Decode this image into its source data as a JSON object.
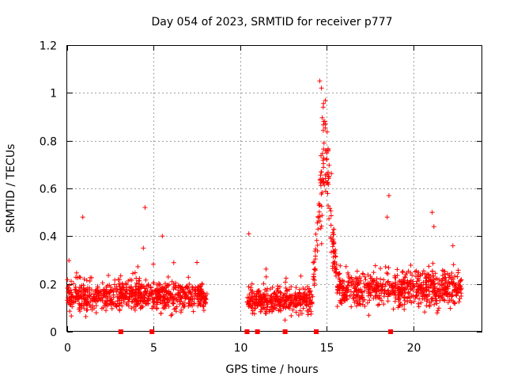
{
  "chart_data": {
    "type": "scatter",
    "title": "Day 054 of 2023, SRMTID for receiver p777",
    "xlabel": "GPS time / hours",
    "ylabel": "SRMTID / TECUs",
    "xlim": [
      0,
      24
    ],
    "ylim": [
      0,
      1.2
    ],
    "x_ticks": [
      0,
      5,
      10,
      15,
      20
    ],
    "x_tick_labels": [
      "0",
      "5",
      "10",
      "15",
      "20"
    ],
    "y_ticks": [
      0,
      0.2,
      0.4,
      0.6,
      0.8,
      1.0,
      1.2
    ],
    "y_tick_labels": [
      "0",
      "0.2",
      "0.4",
      "0.6",
      "0.8",
      "1",
      "1.2"
    ],
    "grid": true,
    "marker": "plus",
    "color": "#ff0000",
    "data_gaps_hours": [
      [
        8.1,
        10.4
      ]
    ],
    "segments": [
      {
        "x_range": [
          0.0,
          8.1
        ],
        "baseline": 0.15,
        "spread": 0.06
      },
      {
        "x_range": [
          10.4,
          14.2
        ],
        "baseline": 0.13,
        "spread": 0.05
      },
      {
        "x_range": [
          14.2,
          15.6
        ],
        "baseline": 0.45,
        "spread": 0.25
      },
      {
        "x_range": [
          15.6,
          22.8
        ],
        "baseline": 0.18,
        "spread": 0.07
      }
    ],
    "notable_points": [
      {
        "x": 0.9,
        "y": 0.48
      },
      {
        "x": 4.4,
        "y": 0.35
      },
      {
        "x": 4.5,
        "y": 0.52
      },
      {
        "x": 5.5,
        "y": 0.4
      },
      {
        "x": 7.5,
        "y": 0.29
      },
      {
        "x": 10.5,
        "y": 0.41
      },
      {
        "x": 14.6,
        "y": 1.05
      },
      {
        "x": 14.7,
        "y": 1.02
      },
      {
        "x": 14.8,
        "y": 0.94
      },
      {
        "x": 14.9,
        "y": 0.88
      },
      {
        "x": 14.85,
        "y": 0.79
      },
      {
        "x": 15.0,
        "y": 0.72
      },
      {
        "x": 15.1,
        "y": 0.65
      },
      {
        "x": 18.6,
        "y": 0.57
      },
      {
        "x": 18.5,
        "y": 0.48
      },
      {
        "x": 21.1,
        "y": 0.5
      },
      {
        "x": 21.2,
        "y": 0.44
      },
      {
        "x": 22.3,
        "y": 0.36
      }
    ],
    "zero_points_x": [
      3.1,
      4.9,
      10.4,
      11.0,
      12.6,
      14.4,
      18.7
    ]
  }
}
